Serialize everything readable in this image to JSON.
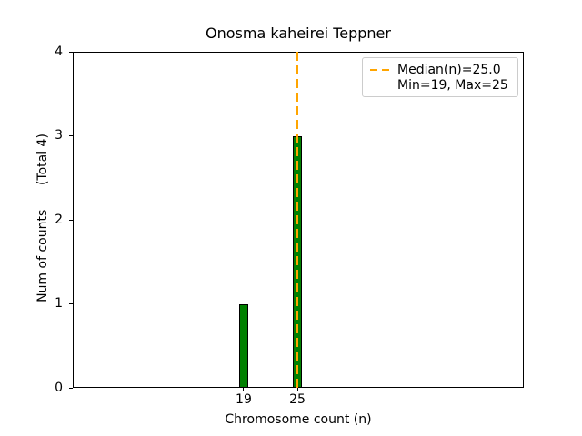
{
  "title": "Onosma kaheirei Teppner",
  "axes": {
    "xlabel": "Chromosome count (n)",
    "ylabel": "Num of counts      (Total 4)"
  },
  "legend": {
    "items": [
      {
        "symbol": "dashed-line",
        "label": "Median(n)=25.0"
      },
      {
        "symbol": "none",
        "label": "Min=19, Max=25"
      }
    ]
  },
  "colors": {
    "bar_fill": "#008000",
    "bar_edge": "#000000",
    "median_line": "#FFA500",
    "legend_border": "#cccccc",
    "axis": "#000000"
  },
  "chart_data": {
    "type": "bar",
    "title": "Onosma kaheirei Teppner",
    "xlabel": "Chromosome count (n)",
    "ylabel": "Num of counts (Total 4)",
    "categories": [
      19,
      25
    ],
    "values": [
      1,
      3
    ],
    "bar_width_units": 1,
    "median": 25.0,
    "min": 19,
    "max": 25,
    "total_counts": 4,
    "xlim": [
      -0.1,
      50.3
    ],
    "ylim": [
      0,
      4
    ],
    "xticks": [
      19,
      25
    ],
    "yticks": [
      0,
      1,
      2,
      3,
      4
    ],
    "grid": false,
    "legend_position": "upper right"
  }
}
